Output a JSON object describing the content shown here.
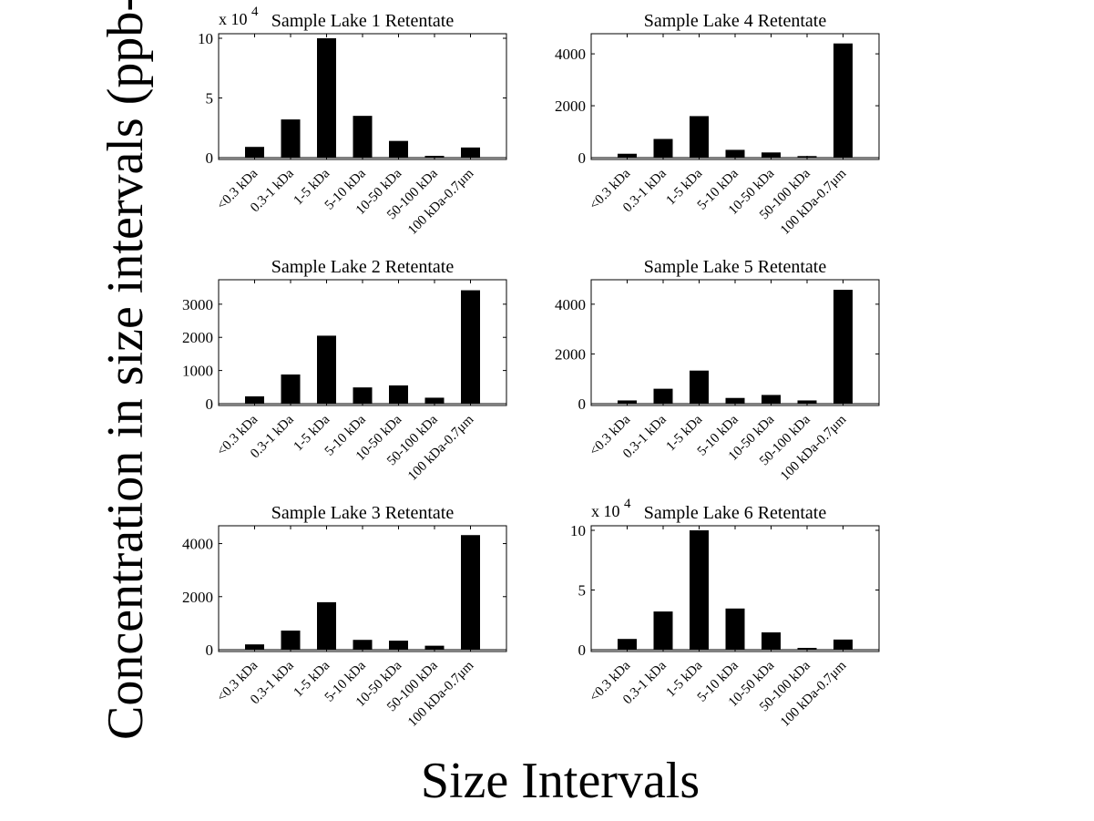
{
  "figure": {
    "ylabel": "Concentration in size intervals (ppb-QSE)",
    "xlabel": "Size Intervals"
  },
  "chart_data": [
    {
      "type": "bar",
      "title": "Sample Lake 1 Retentate",
      "categories": [
        "<0.3 kDa",
        "0.3-1 kDa",
        "1-5 kDa",
        "5-10 kDa",
        "10-50 kDa",
        "50-100 kDa",
        "100 kDa-0.7μm"
      ],
      "values": [
        9000,
        32000,
        100000,
        35000,
        14000,
        1500,
        8500
      ],
      "ylim": [
        0,
        100000
      ],
      "yticks": [
        0,
        50000,
        100000
      ],
      "ytick_labels": [
        "0",
        "5",
        "10"
      ],
      "exponent_label": "x 10",
      "exponent_power": "4",
      "xlabel": "",
      "ylabel": ""
    },
    {
      "type": "bar",
      "title": "Sample Lake 4 Retentate",
      "categories": [
        "<0.3 kDa",
        "0.3-1 kDa",
        "1-5 kDa",
        "5-10 kDa",
        "10-50 kDa",
        "50-100 kDa",
        "100 kDa-0.7μm"
      ],
      "values": [
        150,
        720,
        1600,
        300,
        200,
        60,
        4400
      ],
      "ylim": [
        0,
        4600
      ],
      "yticks": [
        0,
        2000,
        4000
      ],
      "ytick_labels": [
        "0",
        "2000",
        "4000"
      ],
      "exponent_label": "",
      "exponent_power": "",
      "xlabel": "",
      "ylabel": ""
    },
    {
      "type": "bar",
      "title": "Sample Lake 2 Retentate",
      "categories": [
        "<0.3 kDa",
        "0.3-1 kDa",
        "1-5 kDa",
        "5-10 kDa",
        "10-50 kDa",
        "50-100 kDa",
        "100 kDa-0.7μm"
      ],
      "values": [
        220,
        880,
        2050,
        490,
        550,
        180,
        3420
      ],
      "ylim": [
        0,
        3600
      ],
      "yticks": [
        0,
        1000,
        2000,
        3000
      ],
      "ytick_labels": [
        "0",
        "1000",
        "2000",
        "3000"
      ],
      "exponent_label": "",
      "exponent_power": "",
      "xlabel": "",
      "ylabel": ""
    },
    {
      "type": "bar",
      "title": "Sample Lake 5 Retentate",
      "categories": [
        "<0.3 kDa",
        "0.3-1 kDa",
        "1-5 kDa",
        "5-10 kDa",
        "10-50 kDa",
        "50-100 kDa",
        "100 kDa-0.7μm"
      ],
      "values": [
        130,
        600,
        1330,
        230,
        350,
        130,
        4580
      ],
      "ylim": [
        0,
        4800
      ],
      "yticks": [
        0,
        2000,
        4000
      ],
      "ytick_labels": [
        "0",
        "2000",
        "4000"
      ],
      "exponent_label": "",
      "exponent_power": "",
      "xlabel": "",
      "ylabel": ""
    },
    {
      "type": "bar",
      "title": "Sample Lake 3 Retentate",
      "categories": [
        "<0.3 kDa",
        "0.3-1 kDa",
        "1-5 kDa",
        "5-10 kDa",
        "10-50 kDa",
        "50-100 kDa",
        "100 kDa-0.7μm"
      ],
      "values": [
        200,
        720,
        1790,
        370,
        340,
        150,
        4320
      ],
      "ylim": [
        0,
        4500
      ],
      "yticks": [
        0,
        2000,
        4000
      ],
      "ytick_labels": [
        "0",
        "2000",
        "4000"
      ],
      "exponent_label": "",
      "exponent_power": "",
      "xlabel": "",
      "ylabel": ""
    },
    {
      "type": "bar",
      "title": "Sample Lake 6 Retentate",
      "categories": [
        "<0.3 kDa",
        "0.3-1 kDa",
        "1-5 kDa",
        "5-10 kDa",
        "10-50 kDa",
        "50-100 kDa",
        "100 kDa-0.7μm"
      ],
      "values": [
        9000,
        32000,
        100000,
        34500,
        14500,
        1500,
        8500
      ],
      "ylim": [
        0,
        100000
      ],
      "yticks": [
        0,
        50000,
        100000
      ],
      "ytick_labels": [
        "0",
        "5",
        "10"
      ],
      "exponent_label": "x 10",
      "exponent_power": "4",
      "xlabel": "",
      "ylabel": ""
    }
  ]
}
